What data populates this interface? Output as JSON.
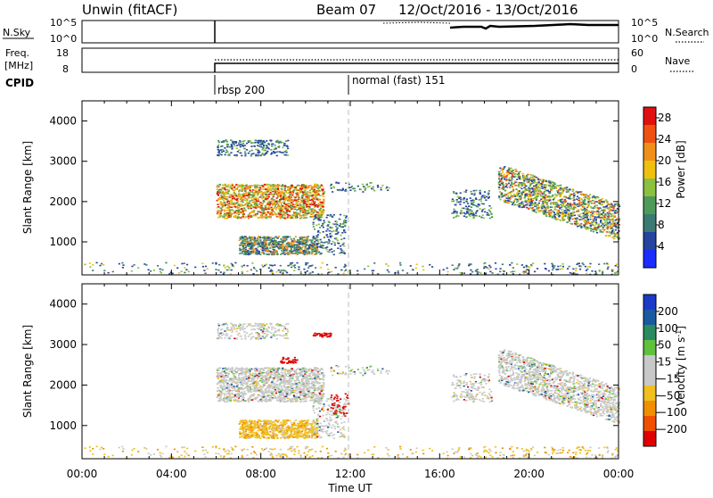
{
  "header": {
    "station": "Unwin (fitACF)",
    "beam": "Beam 07",
    "dates": "12/Oct/2016 - 13/Oct/2016"
  },
  "colors": {
    "power_scale": [
      "#1a2cff",
      "#26449e",
      "#3a7a72",
      "#4e9a5a",
      "#8cc040",
      "#f0c010",
      "#f0901a",
      "#f05010",
      "#e01010"
    ],
    "velocity_scale": [
      "#e00000",
      "#f05000",
      "#f09000",
      "#f0c020",
      "#c8c8c8",
      "#c8c8c8",
      "#60c040",
      "#2a8a60",
      "#1a5aa0",
      "#1a3ac8"
    ]
  },
  "chart_data": [
    {
      "type": "line",
      "name": "sky-noise-search-noise",
      "ylabel": "N.Sky",
      "ylabel_right": "N.Search",
      "yticks_left": [
        "10^5",
        "10^0"
      ],
      "yticks_right": [
        "10^5",
        "10^0"
      ],
      "note": "solid = N.Sky, dotted = N.Search"
    },
    {
      "type": "line",
      "name": "frequency-nave",
      "ylabel": "Freq.",
      "ylabel_unit": "[MHz]",
      "ylabel_right": "Nave",
      "yticks_left": [
        18,
        8
      ],
      "yticks_right": [
        60,
        0
      ]
    },
    {
      "type": "table",
      "name": "cpid",
      "label": "CPID",
      "segments": [
        {
          "start_hour": 6.0,
          "label": "rbsp 200"
        },
        {
          "start_hour": 12.0,
          "label": "normal (fast) 151"
        }
      ]
    },
    {
      "type": "scatter",
      "name": "power",
      "ylabel": "Slant Range [km]",
      "xlabel": "",
      "xlim_hours": [
        0,
        24
      ],
      "ylim_km": [
        180,
        4500
      ],
      "yticks": [
        1000,
        2000,
        3000,
        4000
      ],
      "colorbar": {
        "label": "Power [dB]",
        "ticks": [
          4,
          8,
          12,
          16,
          20,
          24,
          28
        ],
        "range": [
          0,
          30
        ]
      }
    },
    {
      "type": "scatter",
      "name": "velocity",
      "ylabel": "Slant Range [km]",
      "xlabel": "Time UT",
      "xlim_hours": [
        0,
        24
      ],
      "ylim_km": [
        180,
        4500
      ],
      "yticks": [
        1000,
        2000,
        3000,
        4000
      ],
      "xticks": [
        "00:00",
        "04:00",
        "08:00",
        "12:00",
        "16:00",
        "20:00",
        "00:00"
      ],
      "colorbar": {
        "label": "Velocity [m s^-1]",
        "ticks": [
          200,
          100,
          50,
          15,
          -15,
          -50,
          -100,
          -200
        ]
      }
    }
  ]
}
